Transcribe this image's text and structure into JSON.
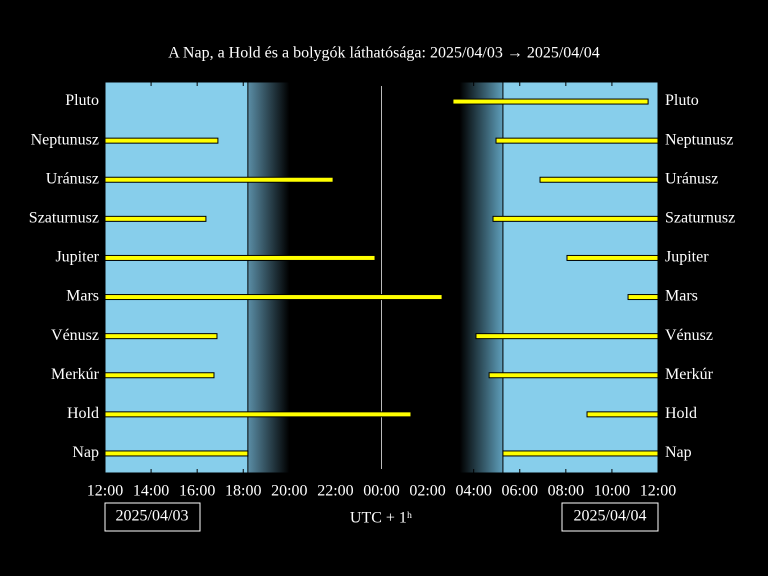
{
  "chart_data": {
    "type": "timeline",
    "title": "A Nap, a Hold és a bolygók láthatósága: 2025/04/03 → 2025/04/04",
    "x_label": "UTC + 1ʰ",
    "start_date": "2025/04/03",
    "end_date": "2025/04/04",
    "categories": [
      "Pluto",
      "Neptunusz",
      "Uránusz",
      "Szaturnusz",
      "Jupiter",
      "Mars",
      "Vénusz",
      "Merkúr",
      "Hold",
      "Nap"
    ],
    "intervals": [
      [
        [
          15.1,
          23.57
        ]
      ],
      [
        [
          0,
          4.9
        ],
        [
          16.97,
          24
        ]
      ],
      [
        [
          0,
          9.9
        ],
        [
          18.88,
          24
        ]
      ],
      [
        [
          0,
          4.38
        ],
        [
          16.84,
          24
        ]
      ],
      [
        [
          0,
          11.72
        ],
        [
          20.05,
          24
        ]
      ],
      [
        [
          0,
          14.63
        ],
        [
          22.7,
          24
        ]
      ],
      [
        [
          0,
          4.86
        ],
        [
          16.1,
          24
        ]
      ],
      [
        [
          0,
          4.73
        ],
        [
          16.67,
          24
        ]
      ],
      [
        [
          0,
          13.28
        ],
        [
          20.92,
          24
        ]
      ],
      [
        [
          0,
          6.2
        ],
        [
          17.27,
          24
        ]
      ]
    ],
    "bar_color": "#ffff00",
    "day_color": "#87ceeb",
    "sunset": 6.2,
    "dusk_end": 8.0,
    "dawn_start": 15.4,
    "sunrise": 17.27,
    "midnight": 12,
    "xlim": [
      0,
      24
    ],
    "xticks": [
      {
        "value": 0,
        "label": "12:00"
      },
      {
        "value": 2,
        "label": "14:00"
      },
      {
        "value": 4,
        "label": "16:00"
      },
      {
        "value": 6,
        "label": "18:00"
      },
      {
        "value": 8,
        "label": "20:00"
      },
      {
        "value": 10,
        "label": "22:00"
      },
      {
        "value": 12,
        "label": "00:00"
      },
      {
        "value": 14,
        "label": "02:00"
      },
      {
        "value": 16,
        "label": "04:00"
      },
      {
        "value": 18,
        "label": "06:00"
      },
      {
        "value": 20,
        "label": "08:00"
      },
      {
        "value": 22,
        "label": "10:00"
      },
      {
        "value": 24,
        "label": "12:00"
      }
    ]
  }
}
